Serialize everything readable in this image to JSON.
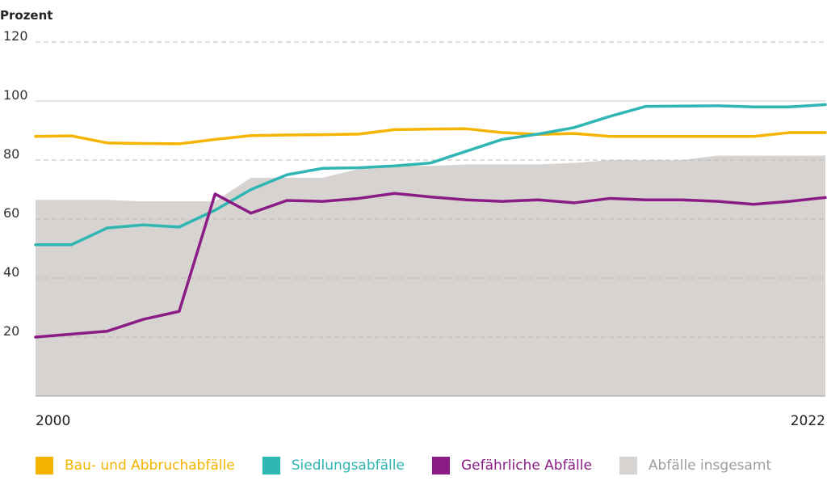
{
  "chart_data": {
    "type": "line",
    "ylabel": "Prozent",
    "ylim": [
      0,
      120
    ],
    "yticks": [
      20,
      40,
      60,
      80,
      100,
      120
    ],
    "x_tick_labels": [
      "2000",
      "2022"
    ],
    "xlim": [
      2000,
      2022
    ],
    "grid": true,
    "legend_position": "bottom",
    "x": [
      2000,
      2001,
      2002,
      2003,
      2004,
      2005,
      2006,
      2007,
      2008,
      2009,
      2010,
      2011,
      2012,
      2013,
      2014,
      2015,
      2016,
      2017,
      2018,
      2019,
      2020,
      2021,
      2022
    ],
    "series": [
      {
        "name": "Bau- und Abbruchabfälle",
        "kind": "line",
        "color": "#f4b400",
        "values": [
          88.0,
          88.2,
          85.8,
          85.6,
          85.5,
          87.0,
          88.3,
          88.5,
          88.6,
          88.8,
          90.3,
          90.5,
          90.6,
          89.3,
          88.7,
          89.0,
          88.0,
          88.0,
          88.0,
          88.0,
          88.0,
          89.3,
          89.3
        ]
      },
      {
        "name": "Siedlungsabfälle",
        "kind": "line",
        "color": "#2fb5b2",
        "values": [
          51.3,
          51.3,
          57.0,
          58.0,
          57.3,
          63.0,
          70.0,
          75.0,
          77.2,
          77.4,
          78.0,
          79.0,
          83.0,
          87.0,
          88.8,
          91.0,
          94.8,
          98.2,
          98.3,
          98.4,
          98.0,
          98.0,
          98.8
        ]
      },
      {
        "name": "Gefährliche Abfälle",
        "kind": "line",
        "color": "#8b1c86",
        "values": [
          20.0,
          21.0,
          22.0,
          26.0,
          28.7,
          68.5,
          62.0,
          66.3,
          66.0,
          67.0,
          68.7,
          67.5,
          66.5,
          66.0,
          66.5,
          65.5,
          67.0,
          66.5,
          66.5,
          66.0,
          65.0,
          66.0,
          67.3
        ]
      },
      {
        "name": "Abfälle insgesamt",
        "kind": "area",
        "color": "#d6d3d1",
        "values": [
          66.5,
          66.5,
          66.5,
          66.0,
          66.0,
          66.0,
          74.0,
          74.0,
          74.0,
          77.0,
          78.0,
          78.0,
          78.5,
          78.5,
          78.5,
          79.0,
          80.0,
          80.0,
          80.0,
          81.5,
          81.5,
          81.5,
          81.5
        ]
      }
    ]
  }
}
